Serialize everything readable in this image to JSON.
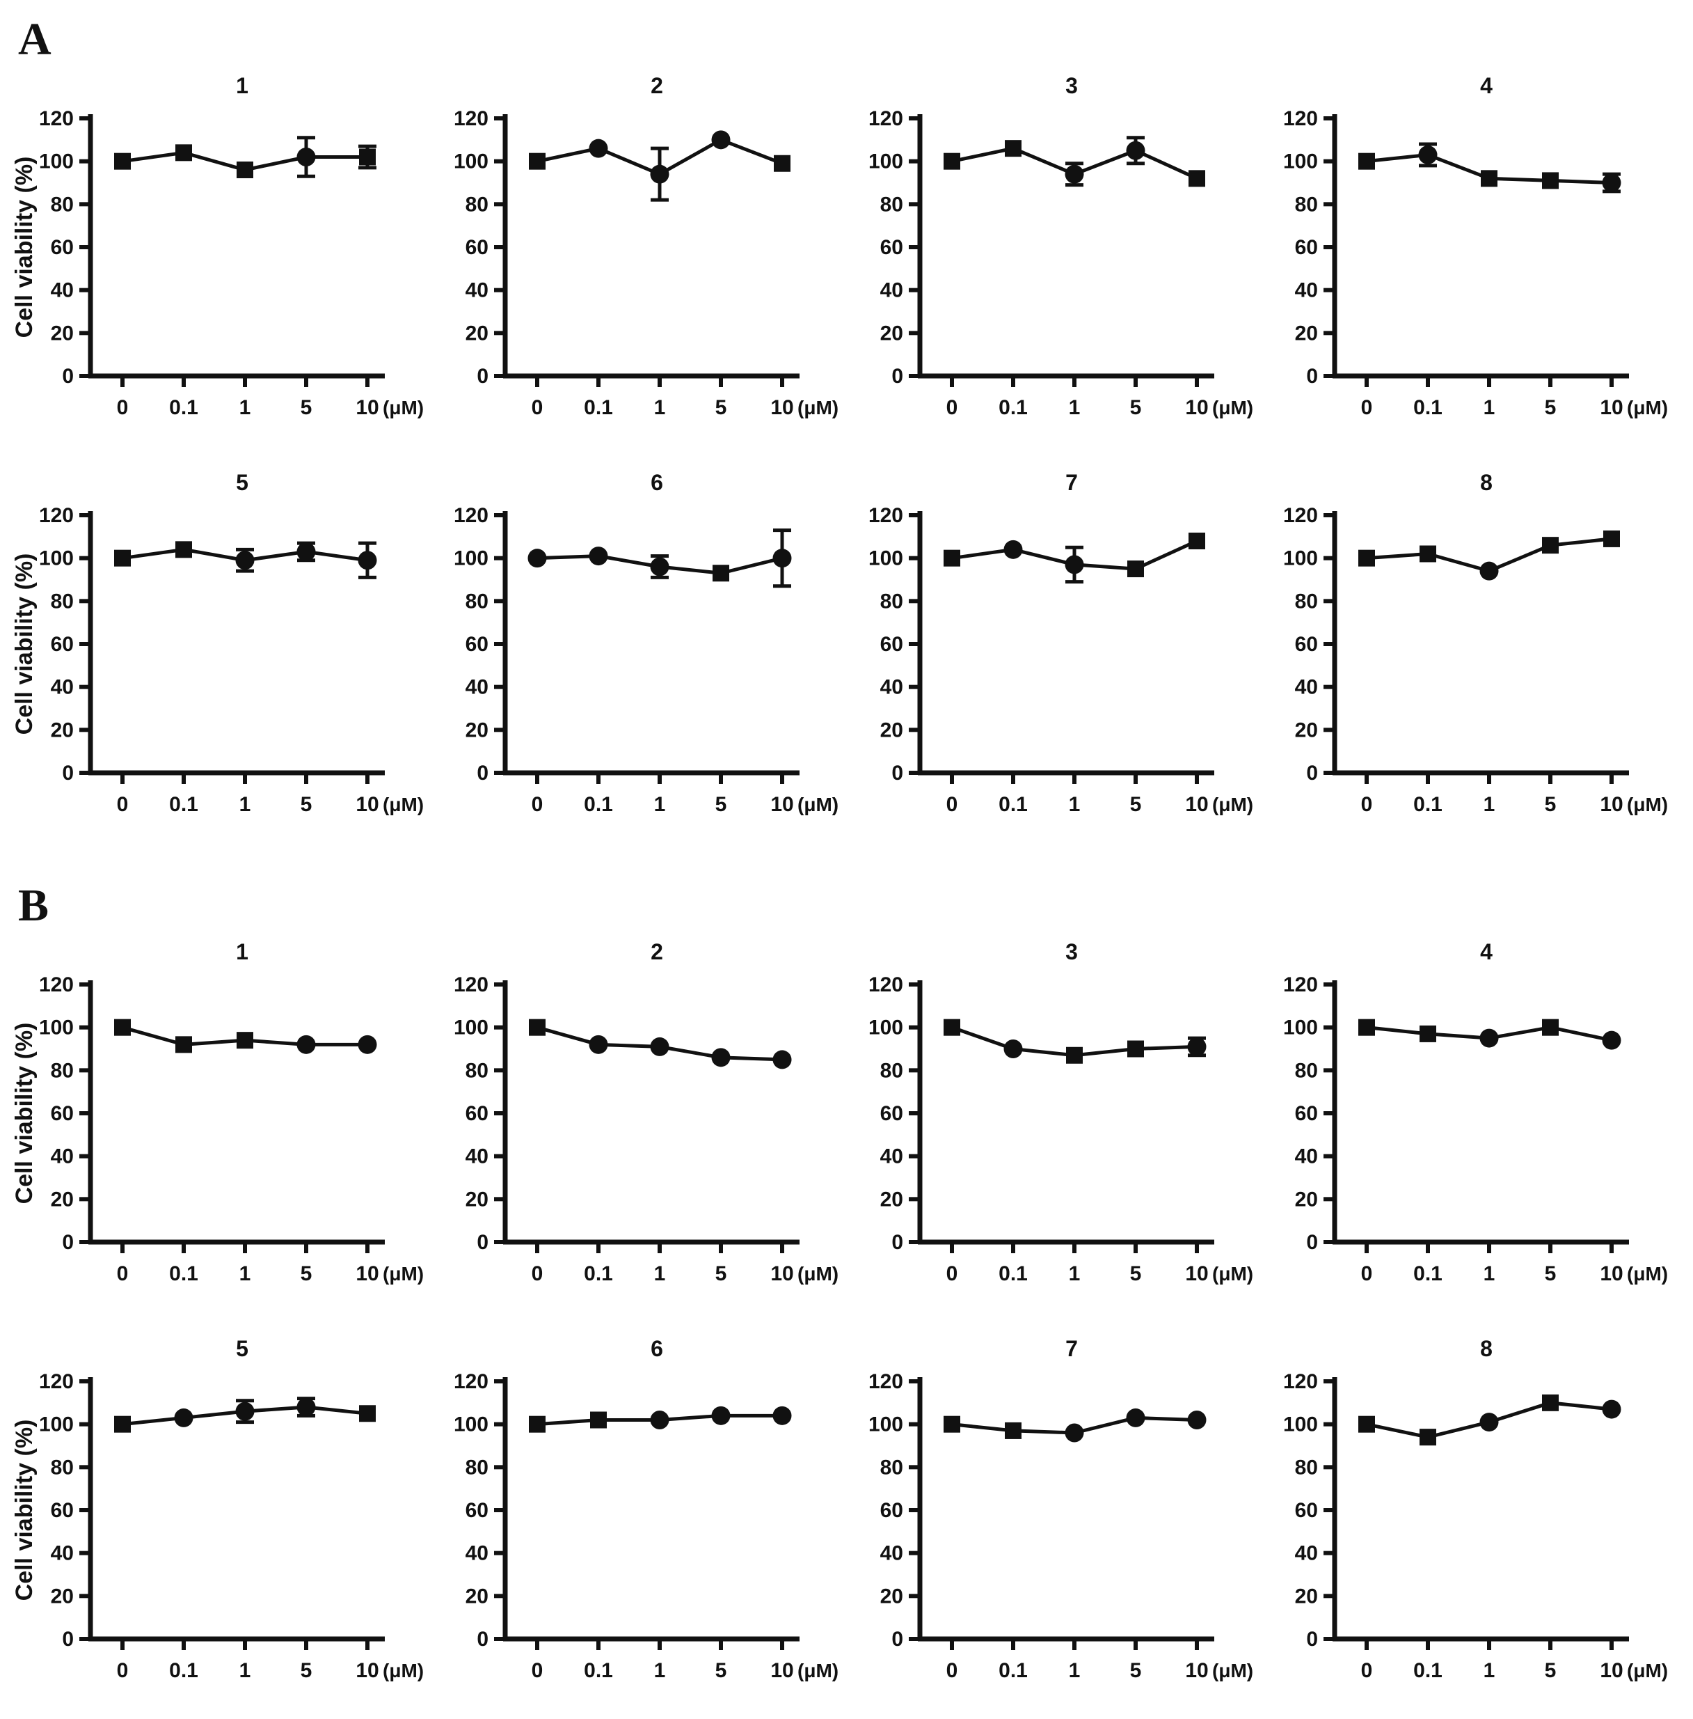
{
  "figure_title": "",
  "panels_count": 2,
  "chart_data": {
    "type": "line",
    "x_categories": [
      "0",
      "0.1",
      "1",
      "5",
      "10"
    ],
    "x_unit": "(μM)",
    "xlabel": "",
    "ylabel": "Cell viability (%)",
    "yticks": [
      0,
      20,
      40,
      60,
      80,
      100,
      120
    ],
    "ylim": [
      0,
      120
    ],
    "grid": "off",
    "legend": "none",
    "ink_color": "#111111",
    "panels": [
      {
        "label": "A",
        "charts": [
          {
            "title": "1",
            "values": [
              100,
              104,
              96,
              102,
              102
            ],
            "errors": [
              0,
              0,
              0,
              9,
              5
            ],
            "markers": [
              "square",
              "square",
              "square",
              "circle",
              "square"
            ]
          },
          {
            "title": "2",
            "values": [
              100,
              106,
              94,
              110,
              99
            ],
            "errors": [
              0,
              0,
              12,
              0,
              0
            ],
            "markers": [
              "square",
              "circle",
              "circle",
              "circle",
              "square"
            ]
          },
          {
            "title": "3",
            "values": [
              100,
              106,
              94,
              105,
              92
            ],
            "errors": [
              0,
              0,
              5,
              6,
              0
            ],
            "markers": [
              "square",
              "square",
              "circle",
              "circle",
              "square"
            ]
          },
          {
            "title": "4",
            "values": [
              100,
              103,
              92,
              91,
              90
            ],
            "errors": [
              0,
              5,
              0,
              0,
              4
            ],
            "markers": [
              "square",
              "circle",
              "square",
              "square",
              "circle"
            ]
          },
          {
            "title": "5",
            "values": [
              100,
              104,
              99,
              103,
              99
            ],
            "errors": [
              0,
              0,
              5,
              4,
              8
            ],
            "markers": [
              "square",
              "square",
              "circle",
              "circle",
              "circle"
            ]
          },
          {
            "title": "6",
            "values": [
              100,
              101,
              96,
              93,
              100
            ],
            "errors": [
              0,
              0,
              5,
              0,
              13
            ],
            "markers": [
              "circle",
              "circle",
              "circle",
              "square",
              "circle"
            ]
          },
          {
            "title": "7",
            "values": [
              100,
              104,
              97,
              95,
              108
            ],
            "errors": [
              0,
              0,
              8,
              0,
              0
            ],
            "markers": [
              "square",
              "circle",
              "circle",
              "square",
              "square"
            ]
          },
          {
            "title": "8",
            "values": [
              100,
              102,
              94,
              106,
              109
            ],
            "errors": [
              0,
              0,
              0,
              0,
              0
            ],
            "markers": [
              "square",
              "square",
              "circle",
              "square",
              "square"
            ]
          }
        ]
      },
      {
        "label": "B",
        "charts": [
          {
            "title": "1",
            "values": [
              100,
              92,
              94,
              92,
              92
            ],
            "errors": [
              0,
              0,
              0,
              0,
              0
            ],
            "markers": [
              "square",
              "square",
              "square",
              "circle",
              "circle"
            ]
          },
          {
            "title": "2",
            "values": [
              100,
              92,
              91,
              86,
              85
            ],
            "errors": [
              0,
              0,
              0,
              0,
              0
            ],
            "markers": [
              "square",
              "circle",
              "circle",
              "circle",
              "circle"
            ]
          },
          {
            "title": "3",
            "values": [
              100,
              90,
              87,
              90,
              91
            ],
            "errors": [
              0,
              0,
              0,
              0,
              4
            ],
            "markers": [
              "square",
              "circle",
              "square",
              "square",
              "circle"
            ]
          },
          {
            "title": "4",
            "values": [
              100,
              97,
              95,
              100,
              94
            ],
            "errors": [
              0,
              0,
              0,
              0,
              0
            ],
            "markers": [
              "square",
              "square",
              "circle",
              "square",
              "circle"
            ]
          },
          {
            "title": "5",
            "values": [
              100,
              103,
              106,
              108,
              105
            ],
            "errors": [
              0,
              0,
              5,
              4,
              0
            ],
            "markers": [
              "square",
              "circle",
              "circle",
              "circle",
              "square"
            ]
          },
          {
            "title": "6",
            "values": [
              100,
              102,
              102,
              104,
              104
            ],
            "errors": [
              0,
              0,
              0,
              0,
              0
            ],
            "markers": [
              "square",
              "square",
              "circle",
              "circle",
              "circle"
            ]
          },
          {
            "title": "7",
            "values": [
              100,
              97,
              96,
              103,
              102
            ],
            "errors": [
              0,
              0,
              0,
              0,
              0
            ],
            "markers": [
              "square",
              "square",
              "circle",
              "circle",
              "circle"
            ]
          },
          {
            "title": "8",
            "values": [
              100,
              94,
              101,
              110,
              107
            ],
            "errors": [
              0,
              0,
              0,
              0,
              0
            ],
            "markers": [
              "square",
              "square",
              "circle",
              "square",
              "circle"
            ]
          }
        ]
      }
    ]
  }
}
